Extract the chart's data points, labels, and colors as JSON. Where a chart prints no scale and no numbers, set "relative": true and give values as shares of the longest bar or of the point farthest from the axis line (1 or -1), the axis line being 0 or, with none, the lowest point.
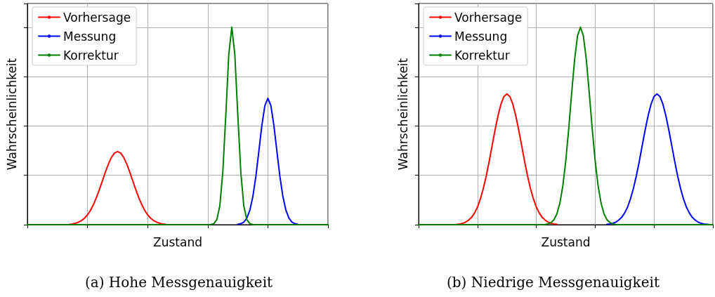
{
  "chart_data": [
    {
      "type": "line",
      "title": "(a) Hohe Messgenauigkeit",
      "xlabel": "Zustand",
      "ylabel": "Wahrscheinlichkeit",
      "relative": true,
      "grid": true,
      "legend": "top left",
      "categories": [
        null,
        null,
        null,
        null,
        null,
        null,
        null,
        null,
        null,
        null,
        null,
        null,
        null,
        null,
        null,
        null,
        null,
        null,
        null,
        null,
        null,
        null,
        null,
        null,
        null,
        null,
        null,
        null,
        null,
        null,
        null,
        null,
        null,
        null,
        null,
        null,
        null,
        null,
        null,
        null,
        null,
        null,
        null,
        null,
        null,
        null,
        null,
        null,
        null,
        null,
        null,
        null,
        null,
        null,
        null,
        null,
        null,
        null,
        null,
        null,
        null,
        null,
        null,
        null,
        null,
        null,
        null,
        null,
        null,
        null,
        null,
        null,
        null,
        null,
        null,
        null,
        null,
        null,
        null,
        null,
        null,
        null,
        null,
        null,
        null,
        null,
        null,
        null,
        null,
        null,
        null,
        null,
        null,
        null,
        null,
        null,
        null,
        null,
        null,
        null,
        null
      ],
      "series": [
        {
          "name": "Vorhersage",
          "color": "#ff0000",
          "values": [
            null,
            null,
            null,
            null,
            null,
            null,
            null,
            null,
            null,
            null,
            null,
            null,
            null,
            null,
            0.002,
            0.004,
            0.007,
            0.013,
            0.021,
            0.033,
            0.05,
            0.073,
            0.103,
            0.139,
            0.18,
            0.224,
            0.269,
            0.309,
            0.342,
            0.363,
            0.37,
            0.363,
            0.342,
            0.309,
            0.269,
            0.224,
            0.18,
            0.139,
            0.103,
            0.073,
            0.05,
            0.033,
            0.021,
            0.013,
            0.007,
            0.004,
            0.002,
            null,
            null,
            null,
            null,
            null,
            null,
            null,
            null,
            null,
            null,
            null,
            null,
            null,
            null,
            null,
            null,
            null,
            null,
            null,
            null,
            null,
            null,
            null,
            null,
            null,
            null,
            null,
            null,
            null,
            null,
            null,
            null,
            null,
            null,
            null,
            null,
            null,
            null,
            null,
            null,
            null,
            null,
            null,
            null,
            null,
            null,
            null,
            null,
            null,
            null,
            null,
            null,
            null,
            null
          ]
        },
        {
          "name": "Messung",
          "color": "#0000ff",
          "values": [
            null,
            null,
            null,
            null,
            null,
            null,
            null,
            null,
            null,
            null,
            null,
            null,
            null,
            null,
            null,
            null,
            null,
            null,
            null,
            null,
            null,
            null,
            null,
            null,
            null,
            null,
            null,
            null,
            null,
            null,
            null,
            null,
            null,
            null,
            null,
            null,
            null,
            null,
            null,
            null,
            null,
            null,
            null,
            null,
            null,
            null,
            null,
            null,
            null,
            null,
            null,
            null,
            null,
            null,
            null,
            null,
            null,
            null,
            null,
            null,
            null,
            null,
            null,
            null,
            null,
            null,
            null,
            null,
            null,
            null,
            0.002,
            0.005,
            0.013,
            0.033,
            0.073,
            0.142,
            0.244,
            0.372,
            0.503,
            0.603,
            0.64,
            0.603,
            0.503,
            0.372,
            0.244,
            0.142,
            0.073,
            0.033,
            0.013,
            0.005,
            0.002,
            null,
            null,
            null,
            null,
            null,
            null,
            null,
            null,
            null,
            null
          ]
        },
        {
          "name": "Korrektur",
          "color": "#008000",
          "values": [
            0,
            0,
            0,
            0,
            0,
            0,
            0,
            0,
            0,
            0,
            0,
            0,
            0,
            0,
            0,
            0,
            0,
            0,
            0,
            0,
            0,
            0,
            0,
            0,
            0,
            0,
            0,
            0,
            0,
            0,
            0,
            0,
            0,
            0,
            0,
            0,
            0,
            0,
            0,
            0,
            0,
            0,
            0,
            0,
            0,
            0,
            0,
            0,
            0,
            0,
            0,
            0,
            0,
            0,
            0,
            0,
            0,
            0,
            0,
            0,
            0,
            0.001,
            0.005,
            0.025,
            0.094,
            0.265,
            0.554,
            0.863,
            1,
            0.863,
            0.554,
            0.265,
            0.094,
            0.025,
            0.005,
            0.001,
            0,
            0,
            0,
            0,
            0,
            0,
            0,
            0,
            0,
            0,
            0,
            0,
            0,
            0,
            0,
            0,
            0,
            0,
            0,
            0,
            0,
            0,
            0,
            0,
            0
          ]
        }
      ]
    },
    {
      "type": "line",
      "title": "(b) Niedrige Messgenauigkeit",
      "xlabel": "Zustand",
      "ylabel": "Wahrscheinlichkeit",
      "relative": true,
      "grid": true,
      "legend": "top left",
      "categories": [
        null,
        null,
        null,
        null,
        null,
        null,
        null,
        null,
        null,
        null,
        null,
        null,
        null,
        null,
        null,
        null,
        null,
        null,
        null,
        null,
        null,
        null,
        null,
        null,
        null,
        null,
        null,
        null,
        null,
        null,
        null,
        null,
        null,
        null,
        null,
        null,
        null,
        null,
        null,
        null,
        null,
        null,
        null,
        null,
        null,
        null,
        null,
        null,
        null,
        null,
        null,
        null,
        null,
        null,
        null,
        null,
        null,
        null,
        null,
        null,
        null,
        null,
        null,
        null,
        null,
        null,
        null,
        null,
        null,
        null,
        null,
        null,
        null,
        null,
        null,
        null,
        null,
        null,
        null,
        null,
        null,
        null,
        null,
        null,
        null,
        null,
        null,
        null,
        null,
        null,
        null,
        null,
        null,
        null,
        null,
        null,
        null,
        null,
        null,
        null,
        null
      ],
      "series": [
        {
          "name": "Vorhersage",
          "color": "#ff0000",
          "values": [
            null,
            null,
            null,
            null,
            null,
            null,
            null,
            null,
            null,
            null,
            null,
            null,
            null,
            0.002,
            0.004,
            0.007,
            0.013,
            0.023,
            0.037,
            0.059,
            0.089,
            0.131,
            0.184,
            0.248,
            0.322,
            0.402,
            0.481,
            0.553,
            0.611,
            0.649,
            0.662,
            0.649,
            0.611,
            0.553,
            0.481,
            0.402,
            0.322,
            0.248,
            0.184,
            0.131,
            0.089,
            0.059,
            0.037,
            0.023,
            0.013,
            0.007,
            0.004,
            0.002,
            null,
            null,
            null,
            null,
            null,
            null,
            null,
            null,
            null,
            null,
            null,
            null,
            null,
            null,
            null,
            null,
            null,
            null,
            null,
            null,
            null,
            null,
            null,
            null,
            null,
            null,
            null,
            null,
            null,
            null,
            null,
            null,
            null,
            null,
            null,
            null,
            null,
            null,
            null,
            null,
            null,
            null,
            null,
            null,
            null,
            null,
            null,
            null,
            null,
            null,
            null,
            null,
            null
          ]
        },
        {
          "name": "Messung",
          "color": "#0000ff",
          "values": [
            null,
            null,
            null,
            null,
            null,
            null,
            null,
            null,
            null,
            null,
            null,
            null,
            null,
            null,
            null,
            null,
            null,
            null,
            null,
            null,
            null,
            null,
            null,
            null,
            null,
            null,
            null,
            null,
            null,
            null,
            null,
            null,
            null,
            null,
            null,
            null,
            null,
            null,
            null,
            null,
            null,
            null,
            null,
            null,
            null,
            null,
            null,
            null,
            null,
            null,
            null,
            null,
            null,
            null,
            null,
            null,
            null,
            null,
            null,
            null,
            null,
            null,
            null,
            null,
            0.002,
            0.004,
            0.007,
            0.013,
            0.023,
            0.037,
            0.059,
            0.089,
            0.131,
            0.184,
            0.248,
            0.322,
            0.402,
            0.481,
            0.553,
            0.611,
            0.649,
            0.662,
            0.649,
            0.611,
            0.553,
            0.481,
            0.402,
            0.322,
            0.248,
            0.184,
            0.131,
            0.089,
            0.059,
            0.037,
            0.023,
            0.013,
            0.007,
            0.004,
            0.002,
            0,
            0
          ]
        },
        {
          "name": "Korrektur",
          "color": "#008000",
          "values": [
            0,
            0,
            0,
            0,
            0,
            0,
            0,
            0,
            0,
            0,
            0,
            0,
            0,
            0,
            0,
            0,
            0,
            0,
            0,
            0,
            0,
            0,
            0,
            0,
            0,
            0,
            0,
            0,
            0,
            0,
            0,
            0,
            0,
            0,
            0,
            0,
            0,
            0,
            0,
            0,
            0,
            0,
            0,
            0.001,
            0.004,
            0.011,
            0.025,
            0.055,
            0.109,
            0.196,
            0.322,
            0.484,
            0.665,
            0.834,
            0.956,
            1,
            0.956,
            0.834,
            0.665,
            0.484,
            0.322,
            0.196,
            0.109,
            0.055,
            0.025,
            0.011,
            0.004,
            0.001,
            0,
            0,
            0,
            0,
            0,
            0,
            0,
            0,
            0,
            0,
            0,
            0,
            0,
            0,
            0,
            0,
            0,
            0,
            0,
            0,
            0,
            0,
            0,
            0,
            0,
            0,
            0,
            0,
            0,
            0,
            0,
            0,
            0
          ]
        }
      ]
    }
  ]
}
